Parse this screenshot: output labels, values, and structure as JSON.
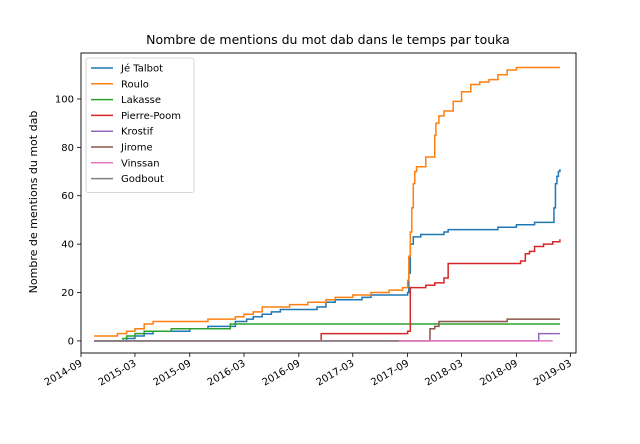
{
  "chart_data": {
    "type": "line",
    "title": "Nombre de mentions du mot dab dans le temps par touka",
    "xlabel": "",
    "ylabel": "Nombre de mentions du mot dab",
    "x_type": "date",
    "xlim": [
      "2014-09-01",
      "2019-03-20"
    ],
    "ylim": [
      -5,
      119
    ],
    "x_ticks": [
      "2014-09",
      "2015-03",
      "2015-09",
      "2016-03",
      "2016-09",
      "2017-03",
      "2017-09",
      "2018-03",
      "2018-09",
      "2019-03"
    ],
    "y_ticks": [
      0,
      20,
      40,
      60,
      80,
      100
    ],
    "legend_position": "top-left",
    "grid": false,
    "series": [
      {
        "name": "Jé Talbot",
        "color": "#1f77b4",
        "points": [
          [
            "2014-10-15",
            0
          ],
          [
            "2014-12-01",
            0
          ],
          [
            "2015-02-01",
            1
          ],
          [
            "2015-03-01",
            2
          ],
          [
            "2015-04-01",
            3
          ],
          [
            "2015-05-01",
            4
          ],
          [
            "2015-09-01",
            5
          ],
          [
            "2015-11-01",
            6
          ],
          [
            "2016-02-01",
            8
          ],
          [
            "2016-03-10",
            9
          ],
          [
            "2016-04-01",
            10
          ],
          [
            "2016-05-01",
            11
          ],
          [
            "2016-06-01",
            12
          ],
          [
            "2016-07-01",
            13
          ],
          [
            "2016-11-01",
            14
          ],
          [
            "2016-12-01",
            16
          ],
          [
            "2017-01-01",
            17
          ],
          [
            "2017-04-01",
            18
          ],
          [
            "2017-05-01",
            19
          ],
          [
            "2017-08-01",
            19
          ],
          [
            "2017-09-01",
            20
          ],
          [
            "2017-09-05",
            28
          ],
          [
            "2017-09-10",
            40
          ],
          [
            "2017-09-20",
            43
          ],
          [
            "2017-10-15",
            44
          ],
          [
            "2017-12-15",
            44
          ],
          [
            "2018-01-01",
            45
          ],
          [
            "2018-01-15",
            46
          ],
          [
            "2018-03-01",
            46
          ],
          [
            "2018-06-01",
            46
          ],
          [
            "2018-07-01",
            47
          ],
          [
            "2018-09-01",
            48
          ],
          [
            "2018-11-01",
            49
          ],
          [
            "2019-01-01",
            49
          ],
          [
            "2019-01-05",
            55
          ],
          [
            "2019-01-10",
            65
          ],
          [
            "2019-01-15",
            68
          ],
          [
            "2019-01-20",
            70
          ],
          [
            "2019-01-25",
            71
          ]
        ]
      },
      {
        "name": "Roulo",
        "color": "#ff7f0e",
        "points": [
          [
            "2014-10-15",
            2
          ],
          [
            "2014-11-15",
            2
          ],
          [
            "2015-01-01",
            3
          ],
          [
            "2015-02-01",
            4
          ],
          [
            "2015-03-01",
            5
          ],
          [
            "2015-04-01",
            7
          ],
          [
            "2015-05-01",
            8
          ],
          [
            "2015-10-01",
            8
          ],
          [
            "2015-11-01",
            9
          ],
          [
            "2016-02-01",
            10
          ],
          [
            "2016-03-01",
            11
          ],
          [
            "2016-04-01",
            12
          ],
          [
            "2016-05-01",
            14
          ],
          [
            "2016-08-01",
            15
          ],
          [
            "2016-10-01",
            16
          ],
          [
            "2016-12-01",
            17
          ],
          [
            "2017-01-01",
            18
          ],
          [
            "2017-03-01",
            19
          ],
          [
            "2017-05-01",
            20
          ],
          [
            "2017-07-01",
            21
          ],
          [
            "2017-08-15",
            22
          ],
          [
            "2017-09-01",
            25
          ],
          [
            "2017-09-05",
            35
          ],
          [
            "2017-09-10",
            45
          ],
          [
            "2017-09-15",
            55
          ],
          [
            "2017-09-20",
            65
          ],
          [
            "2017-09-25",
            70
          ],
          [
            "2017-10-01",
            72
          ],
          [
            "2017-11-01",
            76
          ],
          [
            "2017-12-01",
            85
          ],
          [
            "2017-12-05",
            90
          ],
          [
            "2017-12-15",
            93
          ],
          [
            "2018-01-01",
            95
          ],
          [
            "2018-02-01",
            99
          ],
          [
            "2018-03-01",
            103
          ],
          [
            "2018-04-01",
            106
          ],
          [
            "2018-05-01",
            107
          ],
          [
            "2018-06-01",
            108
          ],
          [
            "2018-07-01",
            110
          ],
          [
            "2018-08-01",
            112
          ],
          [
            "2018-09-01",
            113
          ],
          [
            "2019-01-25",
            113
          ]
        ]
      },
      {
        "name": "Lakasse",
        "color": "#2ca02c",
        "points": [
          [
            "2014-10-15",
            0
          ],
          [
            "2015-01-01",
            0
          ],
          [
            "2015-01-20",
            1
          ],
          [
            "2015-02-01",
            2
          ],
          [
            "2015-03-01",
            3
          ],
          [
            "2015-04-01",
            4
          ],
          [
            "2015-05-01",
            4
          ],
          [
            "2015-07-01",
            5
          ],
          [
            "2016-01-01",
            5
          ],
          [
            "2016-01-15",
            7
          ],
          [
            "2019-01-25",
            7
          ]
        ]
      },
      {
        "name": "Pierre-Poom",
        "color": "#d62728",
        "points": [
          [
            "2014-10-15",
            0
          ],
          [
            "2016-11-01",
            0
          ],
          [
            "2016-11-15",
            3
          ],
          [
            "2017-08-15",
            3
          ],
          [
            "2017-09-01",
            4
          ],
          [
            "2017-09-10",
            22
          ],
          [
            "2017-11-01",
            23
          ],
          [
            "2017-12-01",
            24
          ],
          [
            "2018-01-01",
            26
          ],
          [
            "2018-01-15",
            32
          ],
          [
            "2018-09-01",
            32
          ],
          [
            "2018-09-15",
            33
          ],
          [
            "2018-10-01",
            36
          ],
          [
            "2018-10-15",
            37
          ],
          [
            "2018-11-01",
            39
          ],
          [
            "2018-12-01",
            40
          ],
          [
            "2019-01-01",
            41
          ],
          [
            "2019-01-25",
            42
          ]
        ]
      },
      {
        "name": "Krostif",
        "color": "#9467bd",
        "points": [
          [
            "2014-10-15",
            0
          ],
          [
            "2018-11-01",
            0
          ],
          [
            "2018-11-15",
            3
          ],
          [
            "2019-01-25",
            3
          ]
        ]
      },
      {
        "name": "Jirome",
        "color": "#8c564b",
        "points": [
          [
            "2014-10-15",
            0
          ],
          [
            "2017-11-01",
            0
          ],
          [
            "2017-11-15",
            5
          ],
          [
            "2017-12-01",
            6
          ],
          [
            "2017-12-15",
            8
          ],
          [
            "2018-08-01",
            9
          ],
          [
            "2019-01-25",
            9
          ]
        ]
      },
      {
        "name": "Vinssan",
        "color": "#e377c2",
        "points": [
          [
            "2014-10-15",
            0
          ],
          [
            "2019-01-01",
            0
          ]
        ]
      },
      {
        "name": "Godbout",
        "color": "#7f7f7f",
        "points": [
          [
            "2014-10-15",
            0
          ],
          [
            "2017-08-01",
            0
          ]
        ]
      }
    ]
  }
}
